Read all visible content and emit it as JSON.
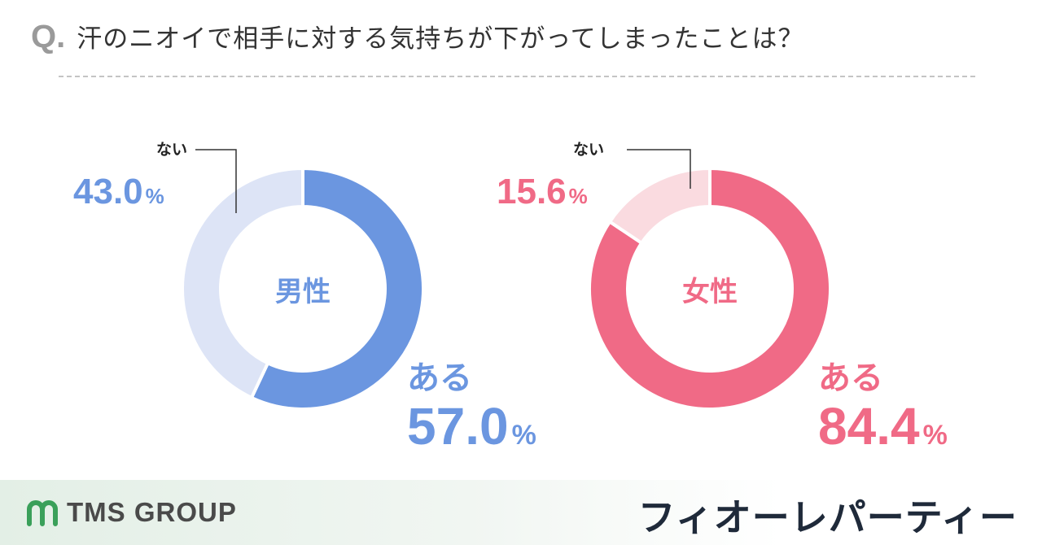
{
  "header": {
    "q_mark": "Q.",
    "question": "汗のニオイで相手に対する気持ちが下がってしまったことは？"
  },
  "chart_data": [
    {
      "type": "pie",
      "center_label": "男性",
      "slices": [
        {
          "label": "ある",
          "value": 57.0,
          "display": "57.0",
          "color": "#6b96e0"
        },
        {
          "label": "ない",
          "value": 43.0,
          "display": "43.0",
          "color": "#dde4f6"
        }
      ],
      "unit": "%"
    },
    {
      "type": "pie",
      "center_label": "女性",
      "slices": [
        {
          "label": "ある",
          "value": 84.4,
          "display": "84.4",
          "color": "#f06a86"
        },
        {
          "label": "ない",
          "value": 15.6,
          "display": "15.6",
          "color": "#fadbe0"
        }
      ],
      "unit": "%"
    }
  ],
  "footer": {
    "left_logo_text": "TMS GROUP",
    "right_logo_text": "フィオーレパーティー",
    "logo_color": "#3aa05a"
  }
}
